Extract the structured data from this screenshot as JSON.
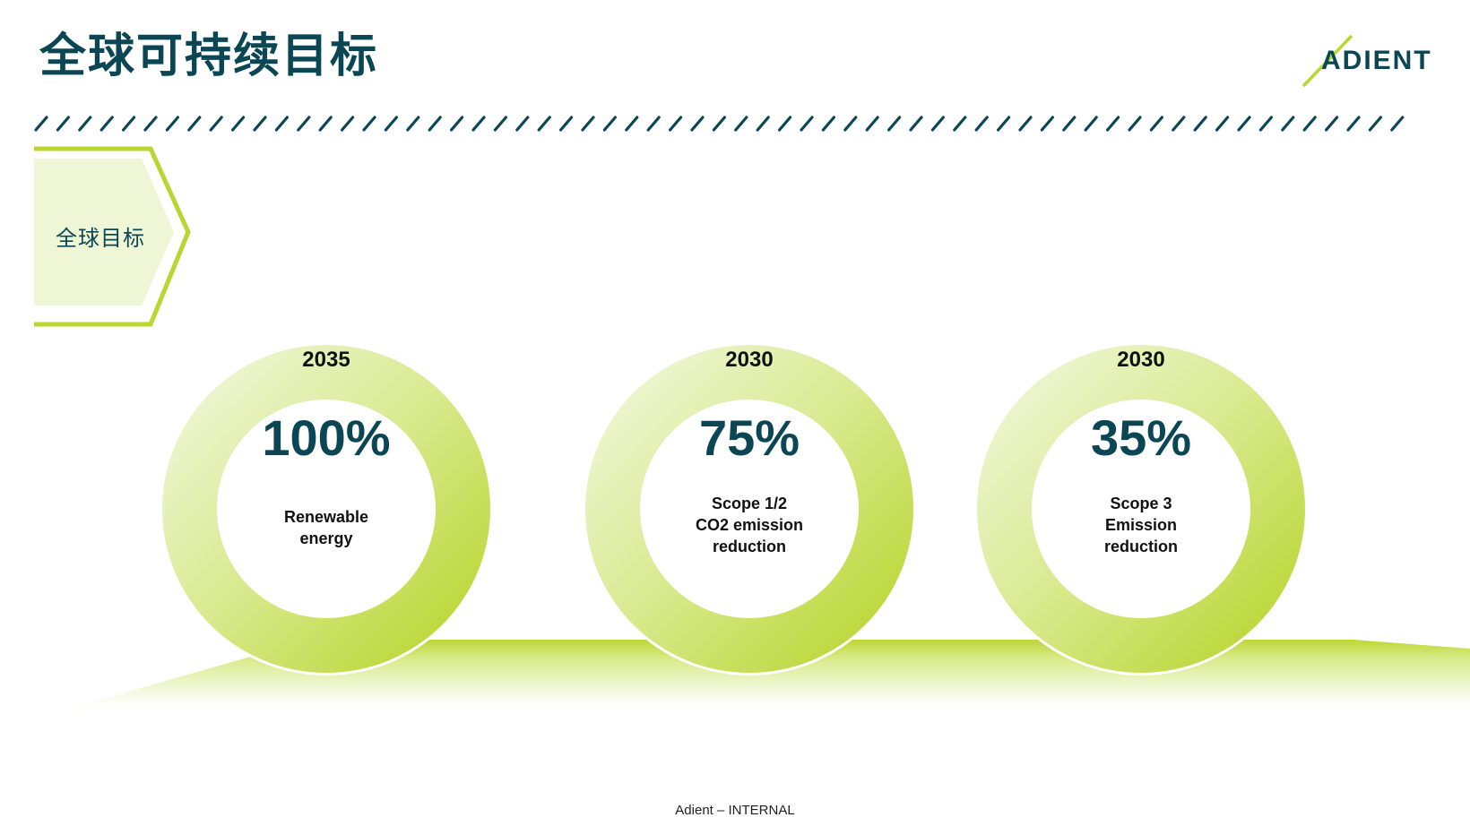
{
  "page": {
    "title": "全球可持续目标",
    "logo_text": "ADIENT",
    "section_label": "全球目标",
    "footer": "Adient – INTERNAL"
  },
  "colors": {
    "title": "#0b4655",
    "accent_green": "#b9d631",
    "light_green": "#eef6d6",
    "ring_light": "#f0f7dc",
    "ring_dark": "#b6d52a"
  },
  "targets": [
    {
      "year": "2035",
      "value": "100%",
      "description_lines": [
        "Renewable",
        "energy"
      ]
    },
    {
      "year": "2030",
      "value": "75%",
      "description_lines": [
        "Scope 1/2",
        "CO2 emission",
        "reduction"
      ]
    },
    {
      "year": "2030",
      "value": "35%",
      "description_lines": [
        "Scope 3",
        "Emission",
        "reduction"
      ]
    }
  ]
}
